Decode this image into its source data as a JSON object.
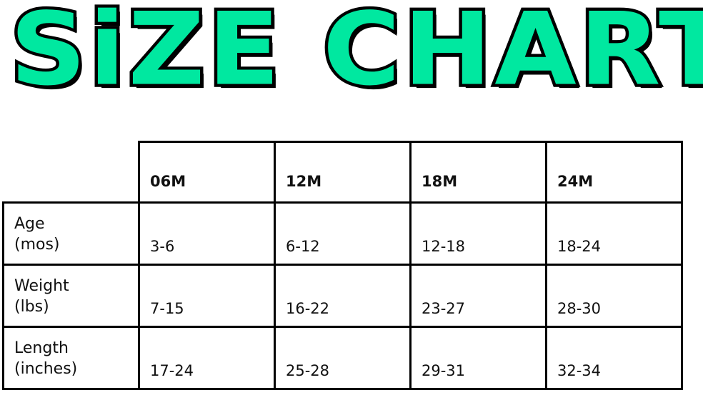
{
  "title": {
    "word1": "SiZE",
    "word2": "CHART",
    "fill_color": "#00E8A0",
    "outline_color": "#000000"
  },
  "table": {
    "columns": [
      "06M",
      "12M",
      "18M",
      "24M"
    ],
    "rows": [
      {
        "label1": "Age",
        "label2": "(mos)",
        "values": [
          "3-6",
          "6-12",
          "12-18",
          "18-24"
        ]
      },
      {
        "label1": "Weight",
        "label2": "(lbs)",
        "values": [
          "7-15",
          "16-22",
          "23-27",
          "28-30"
        ]
      },
      {
        "label1": "Length",
        "label2": "(inches)",
        "values": [
          "17-24",
          "25-28",
          "29-31",
          "32-34"
        ]
      }
    ]
  }
}
